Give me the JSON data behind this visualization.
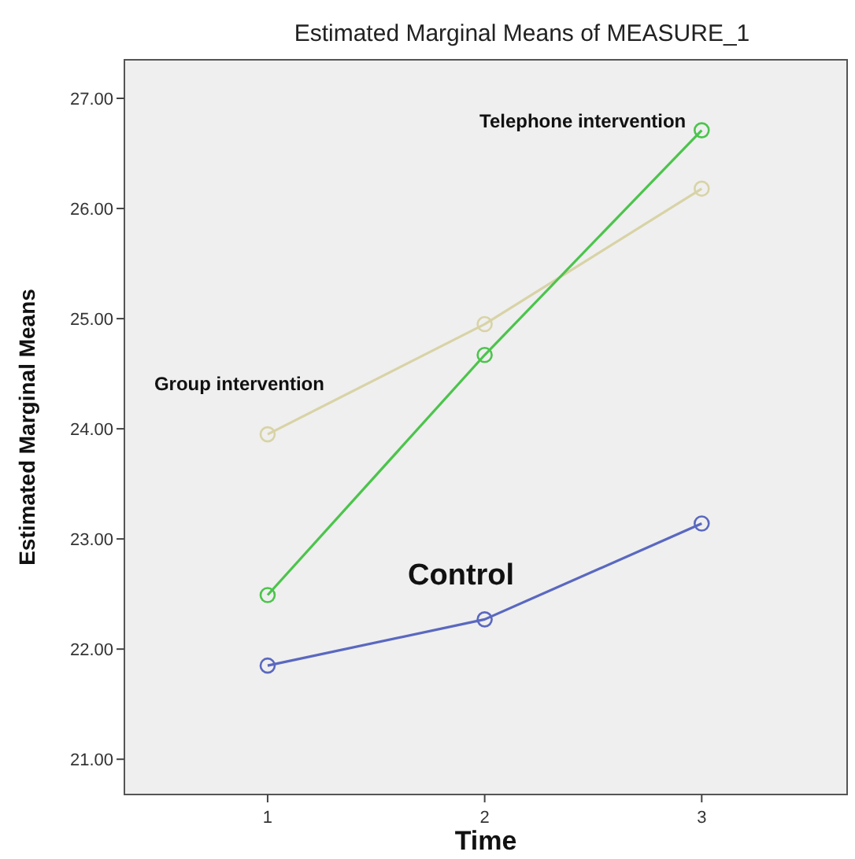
{
  "chart_data": {
    "type": "line",
    "title": "Estimated Marginal Means of MEASURE_1",
    "xlabel": "Time",
    "ylabel": "Estimated Marginal Means",
    "x": [
      1,
      2,
      3
    ],
    "series": [
      {
        "name": "Group intervention",
        "color": "#d8d3a6",
        "values": [
          23.95,
          24.95,
          26.18
        ]
      },
      {
        "name": "Telephone intervention",
        "color": "#4cc44c",
        "values": [
          22.49,
          24.67,
          26.71
        ]
      },
      {
        "name": "Control",
        "color": "#5a68c0",
        "values": [
          21.85,
          22.27,
          23.14
        ]
      }
    ],
    "xlim": [
      0.34,
      3.67
    ],
    "ylim": [
      20.68,
      27.35
    ],
    "xticks": [
      1,
      2,
      3
    ],
    "yticks": [
      {
        "value": 21,
        "label": "21.00"
      },
      {
        "value": 22,
        "label": "22.00"
      },
      {
        "value": 23,
        "label": "23.00"
      },
      {
        "value": 24,
        "label": "24.00"
      },
      {
        "value": 25,
        "label": "25.00"
      },
      {
        "value": 26,
        "label": "26.00"
      },
      {
        "value": 27,
        "label": "27.00"
      }
    ],
    "grid": false,
    "marker": "circle",
    "line_style": "solid"
  }
}
